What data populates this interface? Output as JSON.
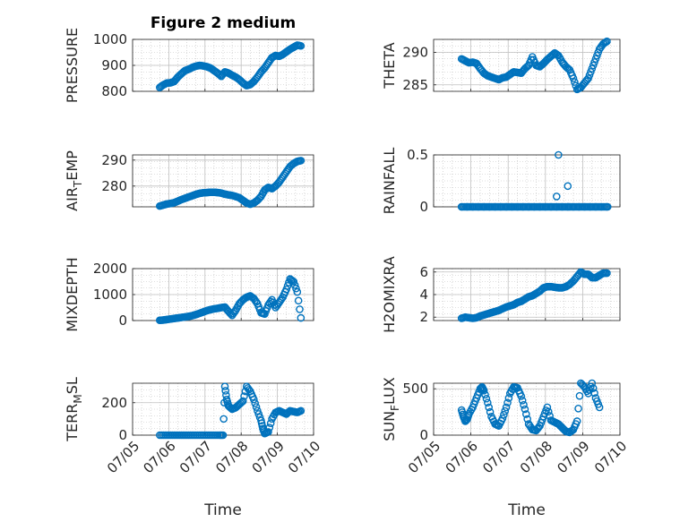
{
  "chart_data": [
    {
      "type": "scatter",
      "title": "Figure 2 medium",
      "ylabel": "PRESSURE",
      "xlabel": "",
      "ylim": [
        800,
        1000
      ],
      "yticks": [
        "800",
        "900",
        "1000"
      ],
      "x_day_range": [
        5,
        10
      ],
      "xtick_labels": [],
      "points": [
        [
          5.75,
          815
        ],
        [
          5.85,
          825
        ],
        [
          5.95,
          832
        ],
        [
          6.05,
          833
        ],
        [
          6.15,
          838
        ],
        [
          6.25,
          855
        ],
        [
          6.35,
          868
        ],
        [
          6.45,
          880
        ],
        [
          6.55,
          885
        ],
        [
          6.65,
          892
        ],
        [
          6.75,
          897
        ],
        [
          6.85,
          900
        ],
        [
          6.95,
          898
        ],
        [
          7.05,
          895
        ],
        [
          7.15,
          890
        ],
        [
          7.25,
          880
        ],
        [
          7.35,
          870
        ],
        [
          7.45,
          858
        ],
        [
          7.55,
          875
        ],
        [
          7.65,
          870
        ],
        [
          7.75,
          862
        ],
        [
          7.85,
          855
        ],
        [
          7.95,
          845
        ],
        [
          8.05,
          832
        ],
        [
          8.15,
          822
        ],
        [
          8.25,
          826
        ],
        [
          8.35,
          838
        ],
        [
          8.45,
          855
        ],
        [
          8.55,
          875
        ],
        [
          8.65,
          890
        ],
        [
          8.75,
          910
        ],
        [
          8.85,
          930
        ],
        [
          8.95,
          938
        ],
        [
          9.05,
          935
        ],
        [
          9.15,
          942
        ],
        [
          9.25,
          952
        ],
        [
          9.35,
          962
        ],
        [
          9.45,
          970
        ],
        [
          9.55,
          978
        ],
        [
          9.65,
          975
        ]
      ]
    },
    {
      "type": "scatter",
      "title": "",
      "ylabel": "THETA",
      "xlabel": "",
      "ylim": [
        284,
        292
      ],
      "yticks": [
        "285",
        "290"
      ],
      "x_day_range": [
        5,
        10
      ],
      "xtick_labels": [],
      "points": [
        [
          5.75,
          289
        ],
        [
          5.85,
          288.7
        ],
        [
          5.95,
          288.4
        ],
        [
          6.05,
          288.5
        ],
        [
          6.15,
          288.3
        ],
        [
          6.25,
          287.5
        ],
        [
          6.35,
          286.8
        ],
        [
          6.45,
          286.4
        ],
        [
          6.55,
          286.2
        ],
        [
          6.65,
          286.0
        ],
        [
          6.75,
          285.8
        ],
        [
          6.85,
          286.1
        ],
        [
          6.95,
          286.2
        ],
        [
          7.05,
          286.6
        ],
        [
          7.15,
          287.0
        ],
        [
          7.25,
          286.9
        ],
        [
          7.35,
          286.8
        ],
        [
          7.45,
          287.5
        ],
        [
          7.55,
          288.0
        ],
        [
          7.65,
          289.3
        ],
        [
          7.75,
          288.0
        ],
        [
          7.85,
          287.8
        ],
        [
          7.95,
          288.3
        ],
        [
          8.05,
          288.9
        ],
        [
          8.15,
          289.4
        ],
        [
          8.25,
          289.9
        ],
        [
          8.35,
          289.5
        ],
        [
          8.45,
          288.5
        ],
        [
          8.55,
          287.8
        ],
        [
          8.65,
          287.3
        ],
        [
          8.75,
          286.0
        ],
        [
          8.85,
          284.3
        ],
        [
          8.95,
          284.6
        ],
        [
          9.05,
          285.3
        ],
        [
          9.15,
          286.0
        ],
        [
          9.25,
          287.5
        ],
        [
          9.35,
          289.0
        ],
        [
          9.45,
          290.5
        ],
        [
          9.55,
          291.3
        ],
        [
          9.65,
          291.7
        ]
      ]
    },
    {
      "type": "scatter",
      "title": "",
      "ylabel": "AIR_TEMP",
      "ylabel_main": "AIR",
      "ylabel_sub": "T",
      "ylabel_rest": "EMP",
      "xlabel": "",
      "ylim": [
        272,
        292
      ],
      "yticks": [
        "280",
        "290"
      ],
      "x_day_range": [
        5,
        10
      ],
      "xtick_labels": [],
      "points": [
        [
          5.75,
          272.3
        ],
        [
          5.85,
          272.7
        ],
        [
          5.95,
          273.1
        ],
        [
          6.05,
          273.3
        ],
        [
          6.15,
          273.6
        ],
        [
          6.25,
          274.2
        ],
        [
          6.35,
          274.8
        ],
        [
          6.45,
          275.3
        ],
        [
          6.55,
          275.8
        ],
        [
          6.65,
          276.3
        ],
        [
          6.75,
          276.8
        ],
        [
          6.85,
          277.2
        ],
        [
          6.95,
          277.4
        ],
        [
          7.05,
          277.5
        ],
        [
          7.15,
          277.6
        ],
        [
          7.25,
          277.6
        ],
        [
          7.35,
          277.5
        ],
        [
          7.45,
          277.3
        ],
        [
          7.55,
          276.9
        ],
        [
          7.65,
          276.6
        ],
        [
          7.75,
          276.4
        ],
        [
          7.85,
          276.0
        ],
        [
          7.95,
          275.5
        ],
        [
          8.05,
          274.5
        ],
        [
          8.15,
          273.5
        ],
        [
          8.25,
          273.0
        ],
        [
          8.35,
          273.5
        ],
        [
          8.45,
          274.5
        ],
        [
          8.55,
          276.0
        ],
        [
          8.65,
          278.5
        ],
        [
          8.75,
          279.5
        ],
        [
          8.85,
          279.0
        ],
        [
          8.95,
          280.0
        ],
        [
          9.05,
          281.5
        ],
        [
          9.15,
          283.5
        ],
        [
          9.25,
          285.5
        ],
        [
          9.35,
          287.5
        ],
        [
          9.45,
          288.7
        ],
        [
          9.55,
          289.5
        ],
        [
          9.65,
          289.8
        ]
      ]
    },
    {
      "type": "scatter",
      "title": "",
      "ylabel": "RAINFALL",
      "xlabel": "",
      "ylim": [
        0,
        0.5
      ],
      "yticks": [
        "0",
        "0.5"
      ],
      "x_day_range": [
        5,
        10
      ],
      "xtick_labels": [],
      "points": [
        [
          5.75,
          0
        ],
        [
          5.9,
          0
        ],
        [
          6.05,
          0
        ],
        [
          6.2,
          0
        ],
        [
          6.35,
          0
        ],
        [
          6.5,
          0
        ],
        [
          6.65,
          0
        ],
        [
          6.8,
          0
        ],
        [
          6.95,
          0
        ],
        [
          7.1,
          0
        ],
        [
          7.25,
          0
        ],
        [
          7.4,
          0
        ],
        [
          7.55,
          0
        ],
        [
          7.7,
          0
        ],
        [
          7.85,
          0
        ],
        [
          8.0,
          0
        ],
        [
          8.15,
          0
        ],
        [
          8.3,
          0
        ],
        [
          8.45,
          0
        ],
        [
          8.6,
          0
        ],
        [
          8.75,
          0
        ],
        [
          8.9,
          0
        ],
        [
          9.05,
          0
        ],
        [
          9.2,
          0
        ],
        [
          9.35,
          0
        ],
        [
          9.5,
          0
        ],
        [
          9.65,
          0
        ],
        [
          8.3,
          0.1
        ],
        [
          8.35,
          0.5
        ],
        [
          8.6,
          0.2
        ]
      ]
    },
    {
      "type": "scatter",
      "title": "",
      "ylabel": "MIXDEPTH",
      "xlabel": "",
      "ylim": [
        0,
        2000
      ],
      "yticks": [
        "0",
        "1000",
        "2000"
      ],
      "x_day_range": [
        5,
        10
      ],
      "xtick_labels": [],
      "points": [
        [
          5.75,
          10
        ],
        [
          5.85,
          20
        ],
        [
          5.95,
          40
        ],
        [
          6.05,
          60
        ],
        [
          6.15,
          80
        ],
        [
          6.25,
          100
        ],
        [
          6.35,
          120
        ],
        [
          6.45,
          140
        ],
        [
          6.55,
          160
        ],
        [
          6.65,
          190
        ],
        [
          6.75,
          230
        ],
        [
          6.85,
          280
        ],
        [
          6.95,
          330
        ],
        [
          7.05,
          380
        ],
        [
          7.15,
          420
        ],
        [
          7.25,
          450
        ],
        [
          7.35,
          470
        ],
        [
          7.45,
          500
        ],
        [
          7.55,
          520
        ],
        [
          7.65,
          350
        ],
        [
          7.75,
          200
        ],
        [
          7.85,
          400
        ],
        [
          7.95,
          650
        ],
        [
          8.05,
          800
        ],
        [
          8.15,
          900
        ],
        [
          8.25,
          950
        ],
        [
          8.35,
          850
        ],
        [
          8.45,
          650
        ],
        [
          8.55,
          300
        ],
        [
          8.65,
          250
        ],
        [
          8.75,
          600
        ],
        [
          8.85,
          800
        ],
        [
          8.95,
          500
        ],
        [
          9.05,
          700
        ],
        [
          9.15,
          900
        ],
        [
          9.25,
          1200
        ],
        [
          9.35,
          1600
        ],
        [
          9.45,
          1500
        ],
        [
          9.55,
          1100
        ],
        [
          9.65,
          100
        ]
      ]
    },
    {
      "type": "scatter",
      "title": "",
      "ylabel": "H2OMIXRA",
      "xlabel": "",
      "ylim": [
        1.7,
        6.3
      ],
      "yticks": [
        "2",
        "4",
        "6"
      ],
      "x_day_range": [
        5,
        10
      ],
      "xtick_labels": [],
      "points": [
        [
          5.75,
          1.9
        ],
        [
          5.85,
          2.0
        ],
        [
          5.95,
          1.95
        ],
        [
          6.05,
          1.9
        ],
        [
          6.15,
          1.95
        ],
        [
          6.25,
          2.1
        ],
        [
          6.35,
          2.2
        ],
        [
          6.45,
          2.3
        ],
        [
          6.55,
          2.4
        ],
        [
          6.65,
          2.5
        ],
        [
          6.75,
          2.6
        ],
        [
          6.85,
          2.75
        ],
        [
          6.95,
          2.9
        ],
        [
          7.05,
          3.0
        ],
        [
          7.15,
          3.1
        ],
        [
          7.25,
          3.3
        ],
        [
          7.35,
          3.4
        ],
        [
          7.45,
          3.6
        ],
        [
          7.55,
          3.8
        ],
        [
          7.65,
          3.9
        ],
        [
          7.75,
          4.1
        ],
        [
          7.85,
          4.3
        ],
        [
          7.95,
          4.6
        ],
        [
          8.05,
          4.7
        ],
        [
          8.15,
          4.7
        ],
        [
          8.25,
          4.65
        ],
        [
          8.35,
          4.6
        ],
        [
          8.45,
          4.6
        ],
        [
          8.55,
          4.7
        ],
        [
          8.65,
          4.9
        ],
        [
          8.75,
          5.2
        ],
        [
          8.85,
          5.6
        ],
        [
          8.95,
          6.0
        ],
        [
          9.05,
          5.8
        ],
        [
          9.15,
          5.8
        ],
        [
          9.25,
          5.5
        ],
        [
          9.35,
          5.5
        ],
        [
          9.45,
          5.7
        ],
        [
          9.55,
          5.9
        ],
        [
          9.65,
          5.9
        ]
      ]
    },
    {
      "type": "scatter",
      "title": "",
      "ylabel": "TERR_MSL",
      "ylabel_main": "TERR",
      "ylabel_sub": "M",
      "ylabel_rest": "SL",
      "xlabel": "Time",
      "ylim": [
        0,
        320
      ],
      "yticks": [
        "0",
        "200"
      ],
      "x_day_range": [
        5,
        10
      ],
      "xtick_labels": [
        "07/05",
        "07/06",
        "07/07",
        "07/08",
        "07/09",
        "07/10"
      ],
      "points": [
        [
          5.75,
          0
        ],
        [
          5.9,
          0
        ],
        [
          6.05,
          0
        ],
        [
          6.2,
          0
        ],
        [
          6.35,
          0
        ],
        [
          6.5,
          0
        ],
        [
          6.65,
          0
        ],
        [
          6.8,
          0
        ],
        [
          6.95,
          0
        ],
        [
          7.1,
          0
        ],
        [
          7.25,
          0
        ],
        [
          7.4,
          0
        ],
        [
          7.5,
          0
        ],
        [
          7.55,
          300
        ],
        [
          7.6,
          220
        ],
        [
          7.65,
          180
        ],
        [
          7.75,
          160
        ],
        [
          7.85,
          170
        ],
        [
          7.95,
          190
        ],
        [
          8.05,
          210
        ],
        [
          8.15,
          300
        ],
        [
          8.25,
          270
        ],
        [
          8.35,
          220
        ],
        [
          8.45,
          150
        ],
        [
          8.55,
          90
        ],
        [
          8.6,
          40
        ],
        [
          8.65,
          10
        ],
        [
          8.75,
          20
        ],
        [
          8.85,
          100
        ],
        [
          8.95,
          140
        ],
        [
          9.05,
          150
        ],
        [
          9.15,
          140
        ],
        [
          9.25,
          130
        ],
        [
          9.35,
          150
        ],
        [
          9.45,
          145
        ],
        [
          9.55,
          140
        ],
        [
          9.65,
          150
        ]
      ]
    },
    {
      "type": "scatter",
      "title": "",
      "ylabel": "SUN_FLUX",
      "ylabel_main": "SUN",
      "ylabel_sub": "F",
      "ylabel_rest": "LUX",
      "xlabel": "Time",
      "ylim": [
        0,
        560
      ],
      "yticks": [
        "0",
        "500"
      ],
      "x_day_range": [
        5,
        10
      ],
      "xtick_labels": [
        "07/05",
        "07/06",
        "07/07",
        "07/08",
        "07/09",
        "07/10"
      ],
      "points": [
        [
          5.75,
          270
        ],
        [
          5.8,
          200
        ],
        [
          5.85,
          150
        ],
        [
          5.9,
          170
        ],
        [
          5.95,
          230
        ],
        [
          6.05,
          300
        ],
        [
          6.15,
          400
        ],
        [
          6.25,
          500
        ],
        [
          6.3,
          520
        ],
        [
          6.35,
          480
        ],
        [
          6.45,
          350
        ],
        [
          6.55,
          200
        ],
        [
          6.65,
          120
        ],
        [
          6.75,
          100
        ],
        [
          6.85,
          180
        ],
        [
          6.95,
          300
        ],
        [
          7.05,
          450
        ],
        [
          7.15,
          520
        ],
        [
          7.25,
          510
        ],
        [
          7.35,
          420
        ],
        [
          7.45,
          280
        ],
        [
          7.55,
          120
        ],
        [
          7.65,
          60
        ],
        [
          7.75,
          50
        ],
        [
          7.85,
          100
        ],
        [
          7.95,
          200
        ],
        [
          8.05,
          300
        ],
        [
          8.15,
          160
        ],
        [
          8.25,
          140
        ],
        [
          8.35,
          120
        ],
        [
          8.45,
          80
        ],
        [
          8.55,
          40
        ],
        [
          8.65,
          30
        ],
        [
          8.75,
          60
        ],
        [
          8.85,
          150
        ],
        [
          8.95,
          560
        ],
        [
          9.05,
          520
        ],
        [
          9.15,
          450
        ],
        [
          9.25,
          560
        ],
        [
          9.35,
          400
        ],
        [
          9.45,
          300
        ]
      ]
    }
  ],
  "colors": {
    "marker": "#0072BD",
    "grid": "#bfbfbf",
    "axis": "#262626"
  }
}
